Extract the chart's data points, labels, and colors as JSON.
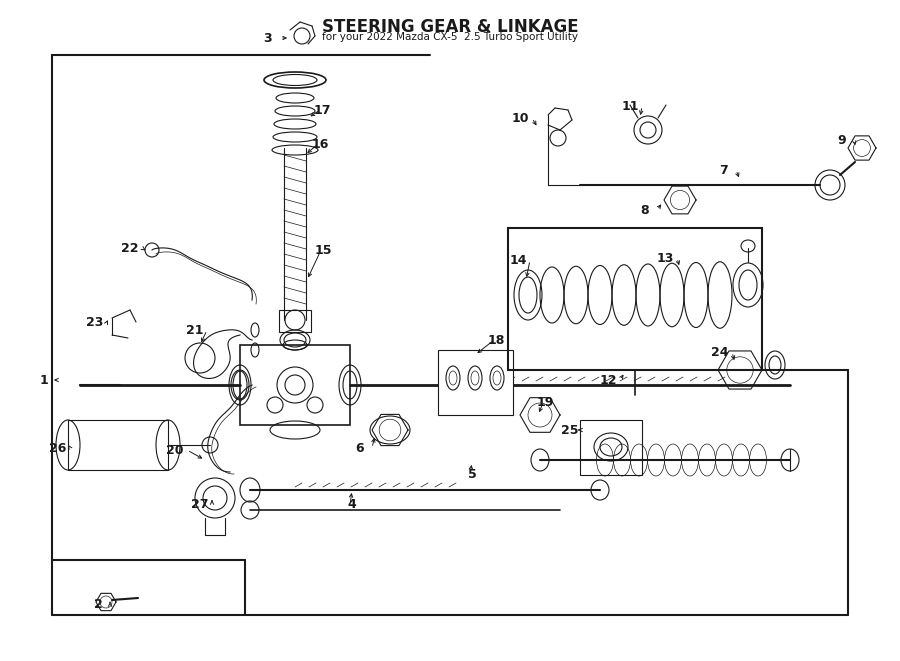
{
  "title": "STEERING GEAR & LINKAGE",
  "subtitle": "for your 2022 Mazda CX-5  2.5 Turbo Sport Utility",
  "bg_color": "#ffffff",
  "line_color": "#1a1a1a",
  "fig_width": 9.0,
  "fig_height": 6.61,
  "dpi": 100
}
